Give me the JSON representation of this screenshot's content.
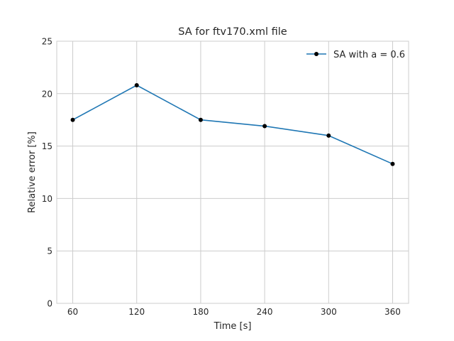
{
  "chart_data": {
    "type": "line",
    "title": "SA for ftv170.xml file",
    "xlabel": "Time [s]",
    "ylabel": "Relative error [%]",
    "x": [
      60,
      120,
      180,
      240,
      300,
      360
    ],
    "xticks": [
      "60",
      "120",
      "180",
      "240",
      "300",
      "360"
    ],
    "yticks": [
      "0",
      "5",
      "10",
      "15",
      "20",
      "25"
    ],
    "ylim": [
      0,
      25
    ],
    "xlim": [
      45,
      375
    ],
    "grid": true,
    "legend_position": "top-right",
    "series": [
      {
        "name": "SA with a = 0.6",
        "values": [
          17.5,
          20.8,
          17.5,
          16.9,
          16.0,
          13.3
        ],
        "color": "#1f77b4",
        "marker_color": "#000000"
      }
    ]
  }
}
